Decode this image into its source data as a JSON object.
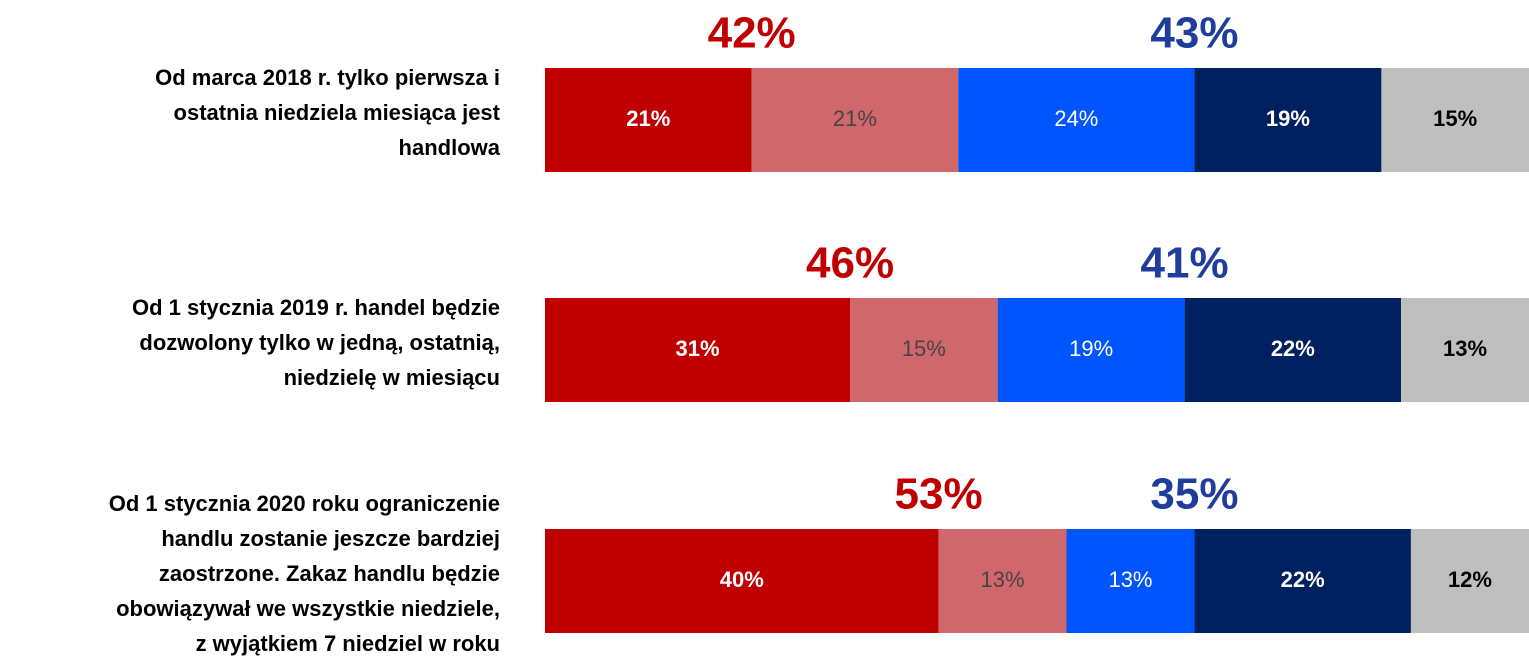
{
  "chart_data": {
    "type": "stacked-bar-horizontal",
    "categories": [
      [
        "Od marca 2018 r. tylko pierwsza i",
        "ostatnia niedziela miesiąca jest",
        "handlowa"
      ],
      [
        "Od 1 stycznia 2019 r. handel będzie",
        "dozwolony tylko w jedną, ostatnią,",
        "niedzielę w miesiącu"
      ],
      [
        "Od 1 stycznia 2020 roku ograniczenie",
        "handlu zostanie jeszcze bardziej",
        "zaostrzone. Zakaz handlu będzie",
        "obowiązywał we wszystkie niedziele,",
        "z wyjątkiem 7 niedziel w roku"
      ]
    ],
    "xlim": [
      0,
      100
    ],
    "series": [
      {
        "color": "#c00000",
        "label_color": "#ffffff",
        "label_bold": true,
        "values": [
          21,
          31,
          40
        ],
        "value_labels": [
          "21%",
          "31%",
          "40%"
        ]
      },
      {
        "color": "#d0686b",
        "label_color": "#444444",
        "label_bold": false,
        "values": [
          21,
          15,
          13
        ],
        "value_labels": [
          "21%",
          "15%",
          "13%"
        ]
      },
      {
        "color": "#0055ff",
        "label_color": "#ffffff",
        "label_bold": false,
        "values": [
          24,
          19,
          13
        ],
        "value_labels": [
          "24%",
          "19%",
          "13%"
        ]
      },
      {
        "color": "#002060",
        "label_color": "#ffffff",
        "label_bold": true,
        "values": [
          19,
          22,
          22
        ],
        "value_labels": [
          "19%",
          "22%",
          "22%"
        ]
      },
      {
        "color": "#bfbfbf",
        "label_color": "#000000",
        "label_bold": true,
        "values": [
          15,
          13,
          12
        ],
        "value_labels": [
          "15%",
          "13%",
          "12%"
        ]
      }
    ],
    "annotations": [
      {
        "color": "#c00000",
        "values": [
          42,
          46,
          53
        ],
        "value_labels": [
          "42%",
          "46%",
          "53%"
        ]
      },
      {
        "color": "#1f3e9c",
        "values": [
          43,
          41,
          35
        ],
        "value_labels": [
          "43%",
          "41%",
          "35%"
        ]
      }
    ]
  }
}
